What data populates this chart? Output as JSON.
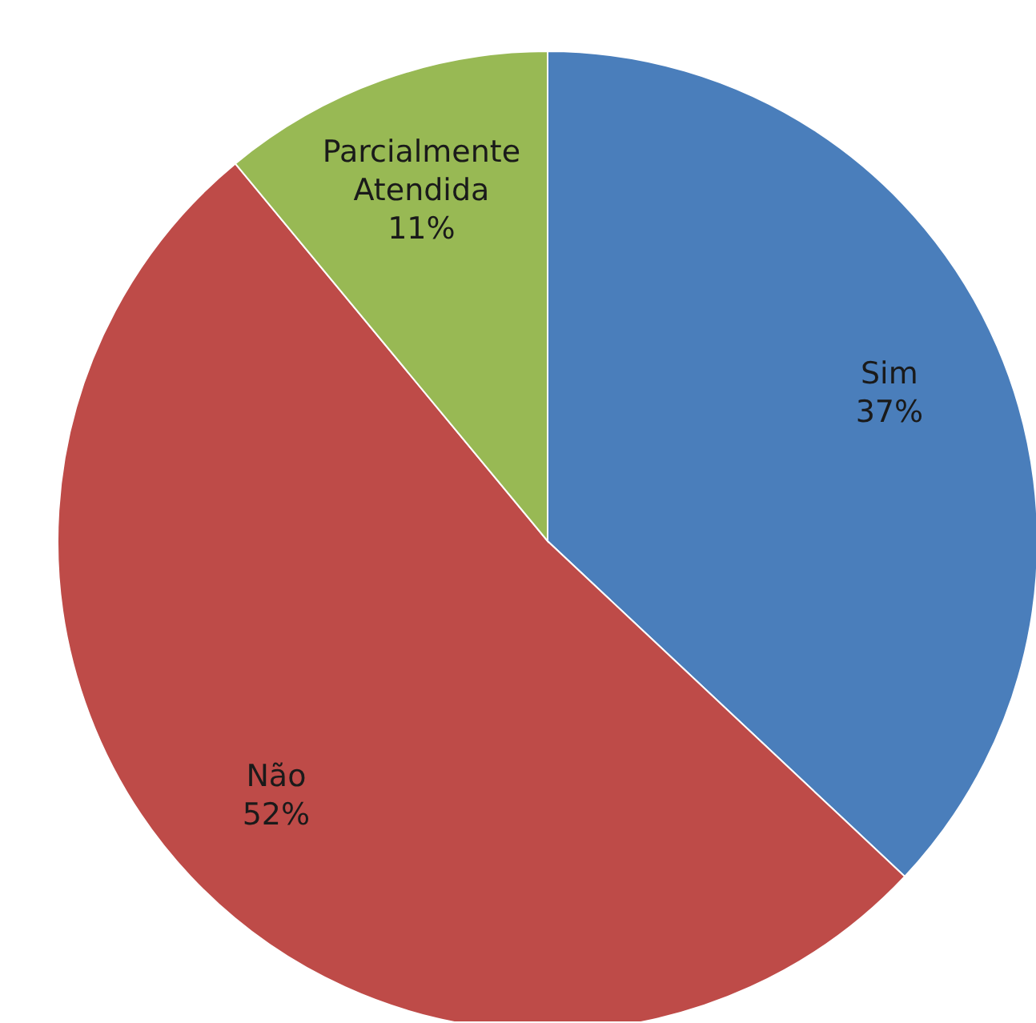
{
  "chart_data": {
    "type": "pie",
    "categories": [
      "Sim",
      "Não",
      "Parcialmente Atendida"
    ],
    "values": [
      37,
      52,
      11
    ],
    "colors": [
      "#4a7ebb",
      "#be4b48",
      "#98b954"
    ],
    "value_labels": [
      "37%",
      "52%",
      "11%"
    ],
    "legend": false
  }
}
